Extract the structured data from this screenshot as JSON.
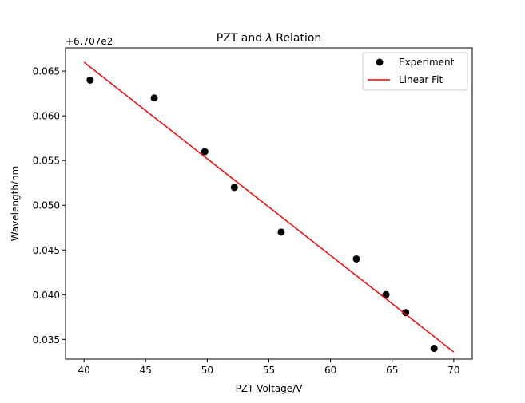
{
  "chart_data": {
    "type": "scatter",
    "title_prefix": "PZT and ",
    "title_symbol": "λ",
    "title_suffix": " Relation",
    "xlabel": "PZT Voltage/V",
    "ylabel": "Wavelength/nm",
    "offset_text": "+6.707e2",
    "xlim": [
      38.5,
      71.5
    ],
    "ylim": [
      0.0328,
      0.0676
    ],
    "x_ticks": [
      40,
      45,
      50,
      55,
      60,
      65,
      70
    ],
    "x_tick_labels": [
      "40",
      "45",
      "50",
      "55",
      "60",
      "65",
      "70"
    ],
    "y_ticks": [
      0.035,
      0.04,
      0.045,
      0.05,
      0.055,
      0.06,
      0.065
    ],
    "y_tick_labels": [
      "0.035",
      "0.040",
      "0.045",
      "0.050",
      "0.055",
      "0.060",
      "0.065"
    ],
    "grid": false,
    "legend_position": "top-right",
    "series": [
      {
        "name": "Experiment",
        "kind": "scatter",
        "color": "#000000",
        "x": [
          40.5,
          45.7,
          49.8,
          52.2,
          56.0,
          62.1,
          64.5,
          66.1,
          68.4
        ],
        "y": [
          0.064,
          0.062,
          0.056,
          0.052,
          0.047,
          0.044,
          0.04,
          0.038,
          0.034
        ]
      },
      {
        "name": "Linear Fit",
        "kind": "line",
        "color": "#ff0000",
        "x": [
          40,
          70
        ],
        "y": [
          0.066,
          0.0336
        ]
      }
    ]
  }
}
